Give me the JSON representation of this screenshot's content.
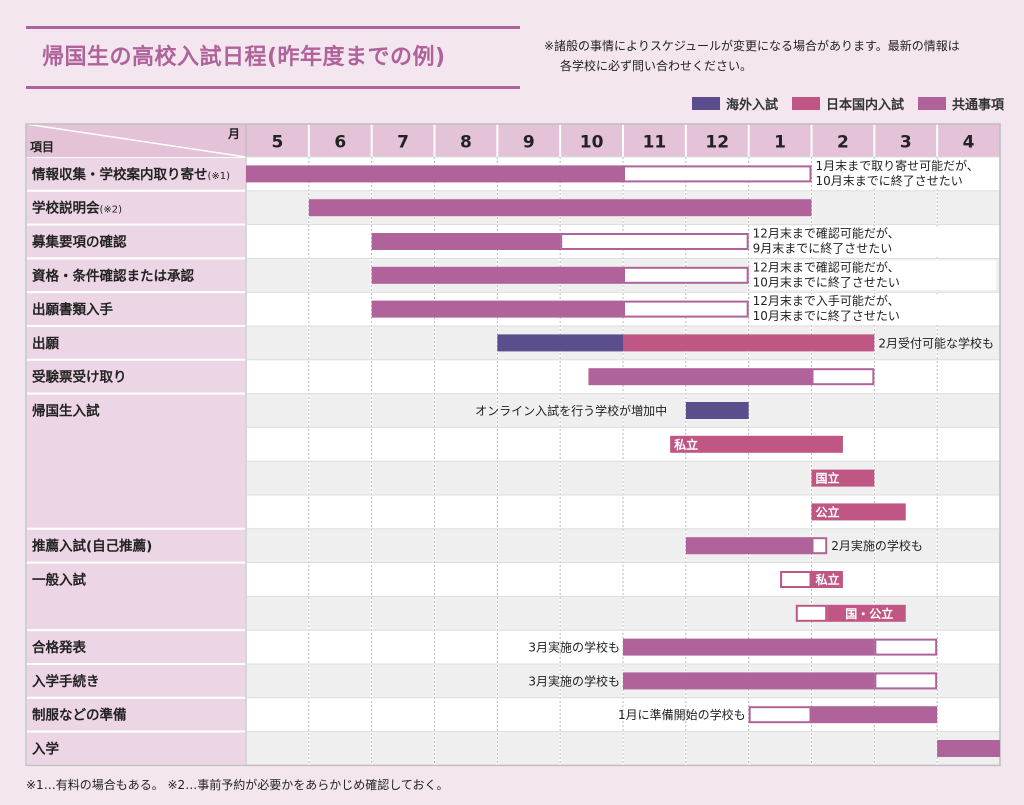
{
  "title": "帰国生の高校入試日程(昨年度までの例)",
  "notice": {
    "line1": "※諸般の事情によりスケジュールが変更になる場合があります。最新の情報は",
    "line2": "各学校に必ず問い合わせください。"
  },
  "colors": {
    "overseas": "#5c4e8c",
    "domestic": "#c05683",
    "common": "#b0629a",
    "header_bg": "#e4c2d8",
    "label_bg": "#ecd5e4",
    "row_gray": "#efefef"
  },
  "legend": [
    {
      "label": "海外入試",
      "key": "overseas"
    },
    {
      "label": "日本国内入試",
      "key": "domestic"
    },
    {
      "label": "共通事項",
      "key": "common"
    }
  ],
  "footnote": "※1…有料の場合もある。 ※2…事前予約が必要かをあらかじめ確認しておく。",
  "chart_data": {
    "type": "gantt",
    "corner_month_label": "月",
    "corner_item_label": "項目",
    "months": [
      "5",
      "6",
      "7",
      "8",
      "9",
      "10",
      "11",
      "12",
      "1",
      "2",
      "3",
      "4"
    ],
    "rows": [
      {
        "label": "情報収集・学校案内取り寄せ",
        "note_mark": "(※1)",
        "gray": false
      },
      {
        "label": "学校説明会",
        "note_mark": "(※2)",
        "gray": true
      },
      {
        "label": "募集要項の確認",
        "gray": false
      },
      {
        "label": "資格・条件確認または承認",
        "gray": true
      },
      {
        "label": "出願書類入手",
        "gray": false
      },
      {
        "label": "出願",
        "gray": true
      },
      {
        "label": "受験票受け取り",
        "gray": false
      },
      {
        "label": "帰国生入試",
        "span": 4,
        "gray": true
      },
      {
        "label": "",
        "gray": false
      },
      {
        "label": "",
        "gray": true
      },
      {
        "label": "",
        "gray": false
      },
      {
        "label": "推薦入試(自己推薦)",
        "gray": true
      },
      {
        "label": "一般入試",
        "span": 2,
        "gray": false
      },
      {
        "label": "",
        "gray": true
      },
      {
        "label": "合格発表",
        "gray": false
      },
      {
        "label": "入学手続き",
        "gray": true
      },
      {
        "label": "制服などの準備",
        "gray": false
      },
      {
        "label": "入学",
        "gray": true
      }
    ],
    "bars": [
      {
        "row": 0,
        "start": 0,
        "end": 6,
        "kind": "common"
      },
      {
        "row": 0,
        "start": 6,
        "end": 9,
        "kind": "common",
        "outline": true
      },
      {
        "row": 1,
        "start": 1,
        "end": 9,
        "kind": "common"
      },
      {
        "row": 2,
        "start": 2,
        "end": 5,
        "kind": "common"
      },
      {
        "row": 2,
        "start": 5,
        "end": 8,
        "kind": "common",
        "outline": true
      },
      {
        "row": 3,
        "start": 2,
        "end": 6,
        "kind": "common"
      },
      {
        "row": 3,
        "start": 6,
        "end": 8,
        "kind": "common",
        "outline": true
      },
      {
        "row": 4,
        "start": 2,
        "end": 6,
        "kind": "common"
      },
      {
        "row": 4,
        "start": 6,
        "end": 8,
        "kind": "common",
        "outline": true
      },
      {
        "row": 5,
        "start": 4,
        "end": 6,
        "kind": "overseas"
      },
      {
        "row": 5,
        "start": 6,
        "end": 10,
        "kind": "domestic"
      },
      {
        "row": 6,
        "start": 5.45,
        "end": 9,
        "kind": "common"
      },
      {
        "row": 6,
        "start": 9,
        "end": 10,
        "kind": "common",
        "outline": true
      },
      {
        "row": 7,
        "start": 7,
        "end": 8,
        "kind": "overseas"
      },
      {
        "row": 8,
        "start": 6.75,
        "end": 9.5,
        "kind": "domestic",
        "text": "私立"
      },
      {
        "row": 9,
        "start": 9,
        "end": 10,
        "kind": "domestic",
        "text": "国立"
      },
      {
        "row": 10,
        "start": 9,
        "end": 10.5,
        "kind": "domestic",
        "text": "公立"
      },
      {
        "row": 11,
        "start": 7,
        "end": 9,
        "kind": "common"
      },
      {
        "row": 11,
        "start": 9,
        "end": 9.25,
        "kind": "common",
        "outline": true
      },
      {
        "row": 12,
        "start": 8.5,
        "end": 9,
        "kind": "domestic",
        "outline": true
      },
      {
        "row": 12,
        "start": 9,
        "end": 9.5,
        "kind": "domestic",
        "text": "私立"
      },
      {
        "row": 13,
        "start": 8.75,
        "end": 9.25,
        "kind": "domestic",
        "outline": true
      },
      {
        "row": 13,
        "start": 9.25,
        "end": 10.5,
        "kind": "domestic",
        "text": "国・公立"
      },
      {
        "row": 14,
        "start": 6,
        "end": 10,
        "kind": "common"
      },
      {
        "row": 14,
        "start": 10,
        "end": 11,
        "kind": "common",
        "outline": true
      },
      {
        "row": 15,
        "start": 6,
        "end": 10,
        "kind": "common"
      },
      {
        "row": 15,
        "start": 10,
        "end": 11,
        "kind": "common",
        "outline": true
      },
      {
        "row": 16,
        "start": 8,
        "end": 9,
        "kind": "common",
        "outline": true
      },
      {
        "row": 16,
        "start": 9,
        "end": 11,
        "kind": "common"
      },
      {
        "row": 17,
        "start": 11,
        "end": 12,
        "kind": "common"
      }
    ],
    "annotations": [
      {
        "row": 0,
        "at": 9,
        "side": "right",
        "lines": [
          "1月末まで取り寄せ可能だが、",
          "10月末までに終了させたい"
        ]
      },
      {
        "row": 2,
        "at": 8,
        "side": "right",
        "lines": [
          "12月末まで確認可能だが、",
          "9月末までに終了させたい"
        ]
      },
      {
        "row": 3,
        "at": 8,
        "side": "right",
        "lines": [
          "12月末まで確認可能だが、",
          "10月末までに終了させたい"
        ]
      },
      {
        "row": 4,
        "at": 8,
        "side": "right",
        "lines": [
          "12月末まで入手可能だが、",
          "10月末までに終了させたい"
        ]
      },
      {
        "row": 5,
        "at": 10,
        "side": "right",
        "lines": [
          "2月受付可能な学校も"
        ]
      },
      {
        "row": 7,
        "at": 6.75,
        "side": "left",
        "lines": [
          "オンライン入試を行う学校が増加中"
        ]
      },
      {
        "row": 11,
        "at": 9.25,
        "side": "right",
        "lines": [
          "2月実施の学校も"
        ]
      },
      {
        "row": 14,
        "at": 6,
        "side": "left",
        "lines": [
          "3月実施の学校も"
        ]
      },
      {
        "row": 15,
        "at": 6,
        "side": "left",
        "lines": [
          "3月実施の学校も"
        ]
      },
      {
        "row": 16,
        "at": 8,
        "side": "left",
        "lines": [
          "1月に準備開始の学校も"
        ]
      }
    ]
  }
}
